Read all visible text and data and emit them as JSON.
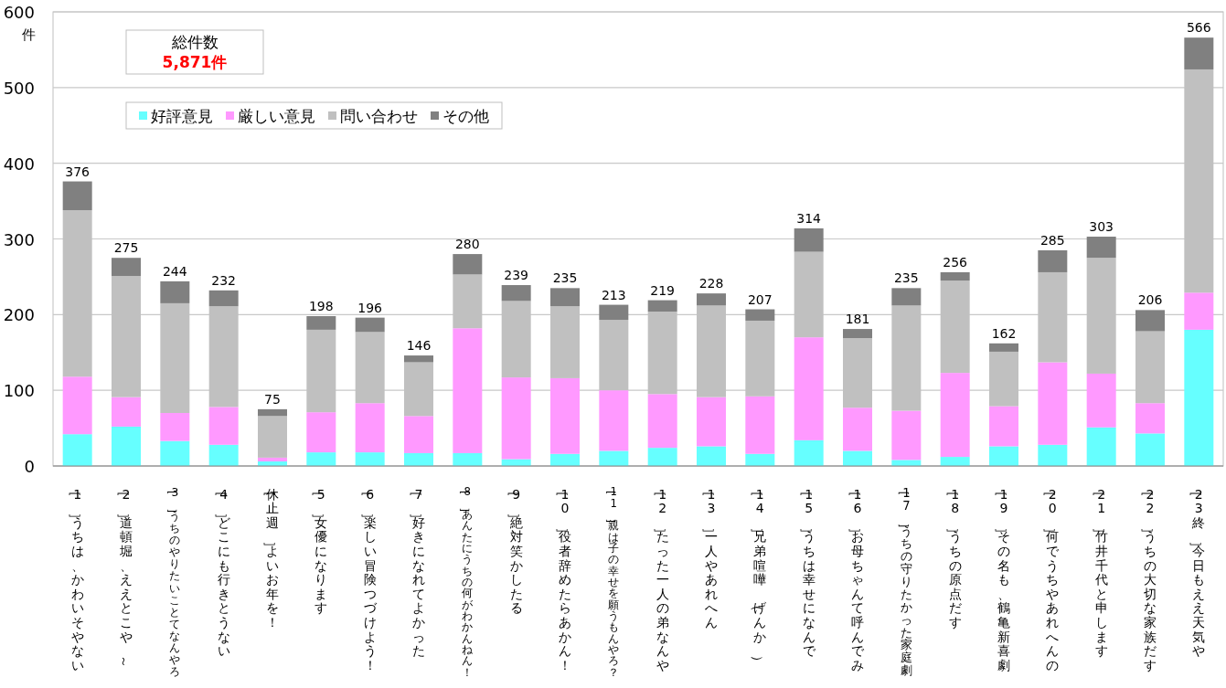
{
  "chart_data": {
    "type": "bar",
    "stacked": true,
    "ylabel": "件",
    "annotations": [
      "総件数",
      "5,871件"
    ],
    "categories": [
      "［1］うちは、かわいそやない",
      "［2］道頓堀、ええとこや～",
      "［3］うちのやりたいことてなんやろ",
      "［4］どこにも行きとうない",
      "［休止週］よいお年を！",
      "［5］女優になります",
      "［6］楽しい冒険つづけよう！",
      "［7］好きになれてよかった",
      "［8］あんたにうちの何がわかんねん！",
      "［9］絶対笑かしたる",
      "［10］役者辞めたらあかん！",
      "［11］親は子の幸せを願うもんやろ？",
      "［12］たった一人の弟なんや",
      "［13］一人やあれへん",
      "［14］兄弟喧嘩（げんか）",
      "［15］うちは幸せになんで",
      "［16］お母ちゃんて呼んでみ",
      "［17］うちの守りたかった家庭劇",
      "［18］うちの原点だす",
      "［19］その名も、鶴亀新喜劇",
      "［20］何でうちやあれへんの",
      "［21］竹井千代と申します",
      "［22］うちの大切な家族だす",
      "［23終］今日もええ天気や"
    ],
    "series": [
      {
        "name": "好評意見",
        "color": "#66ffff",
        "values": [
          42,
          52,
          33,
          28,
          6,
          18,
          18,
          17,
          17,
          9,
          16,
          20,
          24,
          26,
          16,
          34,
          20,
          8,
          12,
          26,
          28,
          51,
          43,
          180
        ]
      },
      {
        "name": "厳しい意見",
        "color": "#ff99ff",
        "values": [
          76,
          39,
          37,
          50,
          5,
          53,
          65,
          49,
          165,
          108,
          100,
          80,
          71,
          65,
          76,
          136,
          57,
          65,
          111,
          53,
          109,
          71,
          40,
          49
        ]
      },
      {
        "name": "問い合わせ",
        "color": "#c0c0c0",
        "values": [
          220,
          160,
          145,
          133,
          55,
          109,
          94,
          71,
          71,
          101,
          95,
          93,
          109,
          121,
          100,
          113,
          92,
          139,
          122,
          72,
          119,
          153,
          95,
          295
        ]
      },
      {
        "name": "その他",
        "color": "#808080",
        "values": [
          38,
          24,
          29,
          21,
          9,
          18,
          19,
          9,
          27,
          21,
          24,
          20,
          15,
          16,
          15,
          31,
          12,
          23,
          11,
          11,
          29,
          28,
          28,
          42
        ]
      }
    ],
    "totals": [
      "376",
      "275",
      "244",
      "232",
      "75",
      "198",
      "196",
      "146",
      "280",
      "239",
      "235",
      "213",
      "219",
      "228",
      "207",
      "314",
      "181",
      "235",
      "256",
      "162",
      "285",
      "303",
      "206",
      "566"
    ],
    "ylim": [
      0,
      600
    ],
    "yticks": [
      0,
      100,
      200,
      300,
      400,
      500,
      600
    ],
    "grid": "y",
    "legend": "top left"
  }
}
